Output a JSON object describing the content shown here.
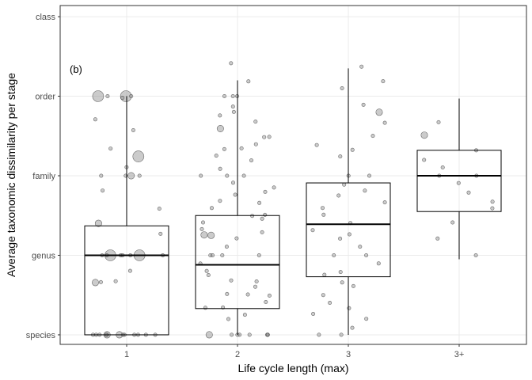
{
  "chart_data": {
    "type": "boxplot",
    "panel_tag": "(b)",
    "xlabel": "Life cycle length (max)",
    "ylabel": "Average taxonomic dissimilarity per stage",
    "categories": [
      "1",
      "2",
      "3",
      "3+"
    ],
    "y_ticks": [
      {
        "label": "species",
        "value": 1
      },
      {
        "label": "genus",
        "value": 2
      },
      {
        "label": "family",
        "value": 3
      },
      {
        "label": "order",
        "value": 4
      },
      {
        "label": "class",
        "value": 5
      }
    ],
    "ylim": [
      0.88,
      5.14
    ],
    "grid": true,
    "boxes": [
      {
        "category": "1",
        "whisker_low": 1.0,
        "q1": 1.0,
        "median": 2.0,
        "q3": 2.37,
        "whisker_high": 4.0
      },
      {
        "category": "2",
        "whisker_low": 1.0,
        "q1": 1.33,
        "median": 1.88,
        "q3": 2.5,
        "whisker_high": 4.2
      },
      {
        "category": "3",
        "whisker_low": 1.0,
        "q1": 1.73,
        "median": 2.39,
        "q3": 2.91,
        "whisker_high": 4.35
      },
      {
        "category": "3+",
        "whisker_low": 1.95,
        "q1": 2.55,
        "median": 3.0,
        "q3": 3.32,
        "whisker_high": 3.97
      }
    ],
    "points": {
      "1": [
        {
          "y": 4.0,
          "s": 3
        },
        {
          "y": 4.0,
          "s": 1
        },
        {
          "y": 4.0,
          "s": 3
        },
        {
          "y": 4.0,
          "s": 1
        },
        {
          "y": 3.98,
          "s": 1
        },
        {
          "y": 3.72,
          "s": 1
        },
        {
          "y": 3.57,
          "s": 1
        },
        {
          "y": 3.35,
          "s": 1
        },
        {
          "y": 3.23,
          "s": 3
        },
        {
          "y": 3.1,
          "s": 1
        },
        {
          "y": 3.0,
          "s": 1
        },
        {
          "y": 3.0,
          "s": 1
        },
        {
          "y": 3.0,
          "s": 2
        },
        {
          "y": 3.0,
          "s": 1
        },
        {
          "y": 2.8,
          "s": 1
        },
        {
          "y": 2.6,
          "s": 1
        },
        {
          "y": 2.4,
          "s": 2
        },
        {
          "y": 2.26,
          "s": 1
        },
        {
          "y": 2.0,
          "s": 1
        },
        {
          "y": 2.0,
          "s": 1
        },
        {
          "y": 2.0,
          "s": 3
        },
        {
          "y": 2.0,
          "s": 3
        },
        {
          "y": 2.0,
          "s": 1
        },
        {
          "y": 2.0,
          "s": 1
        },
        {
          "y": 2.0,
          "s": 1
        },
        {
          "y": 2.0,
          "s": 1
        },
        {
          "y": 1.8,
          "s": 1
        },
        {
          "y": 1.67,
          "s": 1
        },
        {
          "y": 1.67,
          "s": 1
        },
        {
          "y": 1.67,
          "s": 2
        },
        {
          "y": 1.0,
          "s": 1
        },
        {
          "y": 1.0,
          "s": 1
        },
        {
          "y": 1.0,
          "s": 1
        },
        {
          "y": 1.0,
          "s": 2
        },
        {
          "y": 1.0,
          "s": 1
        },
        {
          "y": 1.0,
          "s": 2
        },
        {
          "y": 1.0,
          "s": 1
        },
        {
          "y": 1.0,
          "s": 1
        },
        {
          "y": 1.0,
          "s": 1
        },
        {
          "y": 1.0,
          "s": 1
        },
        {
          "y": 1.0,
          "s": 1
        },
        {
          "y": 1.0,
          "s": 1
        },
        {
          "y": 1.0,
          "s": 1
        }
      ],
      "2": [
        {
          "y": 4.42,
          "s": 1
        },
        {
          "y": 4.2,
          "s": 1
        },
        {
          "y": 4.0,
          "s": 1
        },
        {
          "y": 4.0,
          "s": 1
        },
        {
          "y": 4.0,
          "s": 1
        },
        {
          "y": 3.88,
          "s": 1
        },
        {
          "y": 3.8,
          "s": 1
        },
        {
          "y": 3.75,
          "s": 1
        },
        {
          "y": 3.67,
          "s": 1
        },
        {
          "y": 3.6,
          "s": 2
        },
        {
          "y": 3.5,
          "s": 1
        },
        {
          "y": 3.5,
          "s": 1
        },
        {
          "y": 3.4,
          "s": 1
        },
        {
          "y": 3.33,
          "s": 1
        },
        {
          "y": 3.33,
          "s": 1
        },
        {
          "y": 3.25,
          "s": 1
        },
        {
          "y": 3.2,
          "s": 1
        },
        {
          "y": 3.1,
          "s": 1
        },
        {
          "y": 3.0,
          "s": 1
        },
        {
          "y": 3.0,
          "s": 1
        },
        {
          "y": 3.0,
          "s": 1
        },
        {
          "y": 2.9,
          "s": 1
        },
        {
          "y": 2.85,
          "s": 1
        },
        {
          "y": 2.8,
          "s": 1
        },
        {
          "y": 2.75,
          "s": 1
        },
        {
          "y": 2.67,
          "s": 1
        },
        {
          "y": 2.67,
          "s": 1
        },
        {
          "y": 2.6,
          "s": 1
        },
        {
          "y": 2.5,
          "s": 1
        },
        {
          "y": 2.5,
          "s": 1
        },
        {
          "y": 2.45,
          "s": 1
        },
        {
          "y": 2.4,
          "s": 1
        },
        {
          "y": 2.33,
          "s": 1
        },
        {
          "y": 2.3,
          "s": 1
        },
        {
          "y": 2.25,
          "s": 2
        },
        {
          "y": 2.25,
          "s": 2
        },
        {
          "y": 2.2,
          "s": 1
        },
        {
          "y": 2.1,
          "s": 1
        },
        {
          "y": 2.0,
          "s": 1
        },
        {
          "y": 2.0,
          "s": 1
        },
        {
          "y": 2.0,
          "s": 1
        },
        {
          "y": 2.0,
          "s": 1
        },
        {
          "y": 1.9,
          "s": 1
        },
        {
          "y": 1.8,
          "s": 1
        },
        {
          "y": 1.75,
          "s": 1
        },
        {
          "y": 1.67,
          "s": 1
        },
        {
          "y": 1.67,
          "s": 1
        },
        {
          "y": 1.6,
          "s": 1
        },
        {
          "y": 1.5,
          "s": 1
        },
        {
          "y": 1.5,
          "s": 1
        },
        {
          "y": 1.5,
          "s": 1
        },
        {
          "y": 1.4,
          "s": 1
        },
        {
          "y": 1.33,
          "s": 1
        },
        {
          "y": 1.33,
          "s": 1
        },
        {
          "y": 1.25,
          "s": 1
        },
        {
          "y": 1.2,
          "s": 1
        },
        {
          "y": 1.0,
          "s": 1
        },
        {
          "y": 1.0,
          "s": 1
        },
        {
          "y": 1.0,
          "s": 1
        },
        {
          "y": 1.0,
          "s": 2
        },
        {
          "y": 1.0,
          "s": 1
        },
        {
          "y": 1.0,
          "s": 1
        },
        {
          "y": 1.0,
          "s": 1
        },
        {
          "y": 1.0,
          "s": 1
        }
      ],
      "3": [
        {
          "y": 4.37,
          "s": 1
        },
        {
          "y": 4.2,
          "s": 1
        },
        {
          "y": 4.1,
          "s": 1
        },
        {
          "y": 3.9,
          "s": 1
        },
        {
          "y": 3.8,
          "s": 2
        },
        {
          "y": 3.67,
          "s": 1
        },
        {
          "y": 3.5,
          "s": 1
        },
        {
          "y": 3.4,
          "s": 1
        },
        {
          "y": 3.33,
          "s": 1
        },
        {
          "y": 3.25,
          "s": 1
        },
        {
          "y": 3.0,
          "s": 1
        },
        {
          "y": 3.0,
          "s": 1
        },
        {
          "y": 2.9,
          "s": 1
        },
        {
          "y": 2.8,
          "s": 1
        },
        {
          "y": 2.75,
          "s": 1
        },
        {
          "y": 2.67,
          "s": 1
        },
        {
          "y": 2.6,
          "s": 1
        },
        {
          "y": 2.5,
          "s": 1
        },
        {
          "y": 2.4,
          "s": 1
        },
        {
          "y": 2.33,
          "s": 1
        },
        {
          "y": 2.25,
          "s": 1
        },
        {
          "y": 2.2,
          "s": 1
        },
        {
          "y": 2.1,
          "s": 1
        },
        {
          "y": 2.0,
          "s": 1
        },
        {
          "y": 2.0,
          "s": 1
        },
        {
          "y": 1.9,
          "s": 1
        },
        {
          "y": 1.8,
          "s": 1
        },
        {
          "y": 1.75,
          "s": 1
        },
        {
          "y": 1.67,
          "s": 1
        },
        {
          "y": 1.6,
          "s": 1
        },
        {
          "y": 1.5,
          "s": 1
        },
        {
          "y": 1.4,
          "s": 1
        },
        {
          "y": 1.33,
          "s": 1
        },
        {
          "y": 1.25,
          "s": 1
        },
        {
          "y": 1.2,
          "s": 1
        },
        {
          "y": 1.1,
          "s": 1
        },
        {
          "y": 1.0,
          "s": 1
        },
        {
          "y": 1.0,
          "s": 1
        }
      ],
      "3+": [
        {
          "y": 3.67,
          "s": 1
        },
        {
          "y": 3.5,
          "s": 2
        },
        {
          "y": 3.33,
          "s": 1
        },
        {
          "y": 3.2,
          "s": 1
        },
        {
          "y": 3.1,
          "s": 1
        },
        {
          "y": 3.0,
          "s": 1
        },
        {
          "y": 3.0,
          "s": 1
        },
        {
          "y": 2.9,
          "s": 1
        },
        {
          "y": 2.8,
          "s": 1
        },
        {
          "y": 2.67,
          "s": 1
        },
        {
          "y": 2.6,
          "s": 1
        },
        {
          "y": 2.4,
          "s": 1
        },
        {
          "y": 2.2,
          "s": 1
        },
        {
          "y": 2.0,
          "s": 1
        }
      ]
    },
    "colors": {
      "point_fill": "#8c8c8c",
      "point_stroke": "#333333",
      "box_stroke": "#000000",
      "grid": "#ebebeb",
      "panel_border": "#333333"
    }
  }
}
